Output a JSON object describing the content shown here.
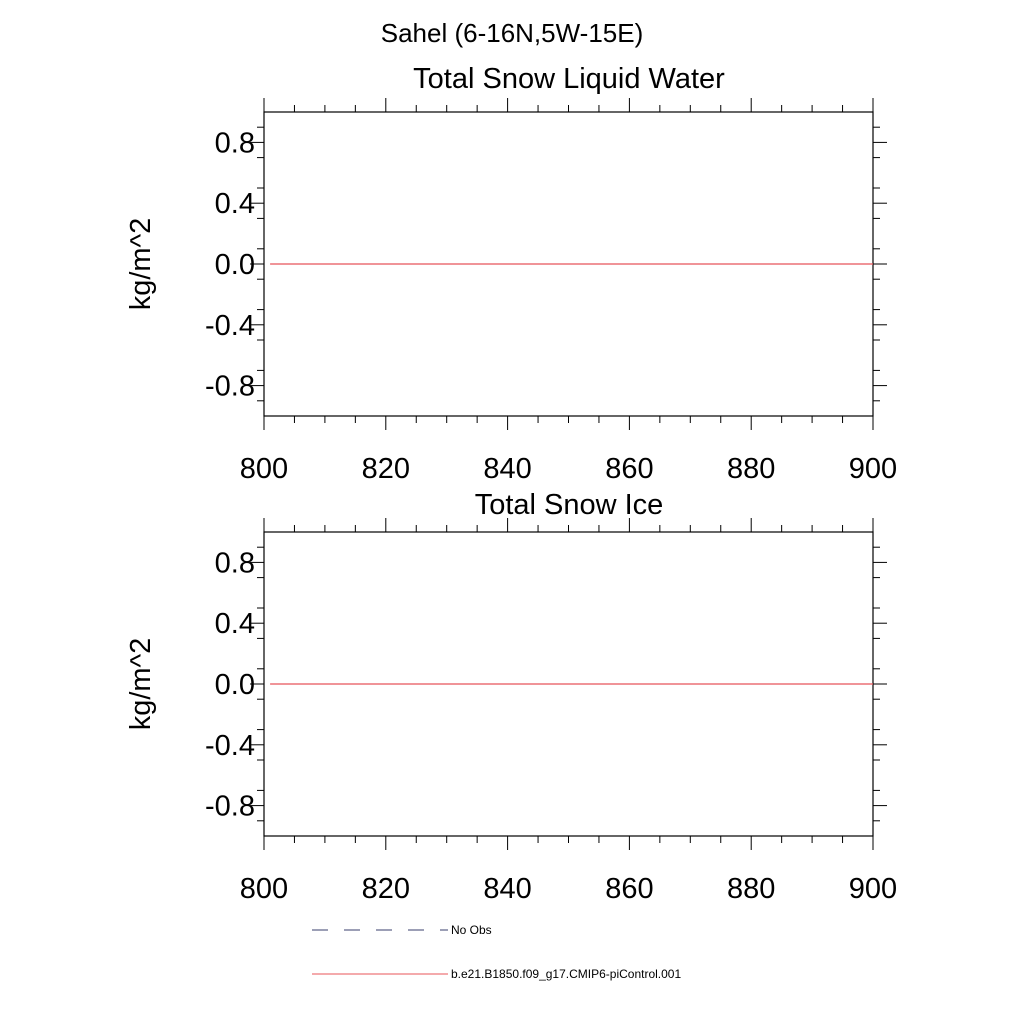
{
  "region_title": "Sahel (6-16N,5W-15E)",
  "chart_data": [
    {
      "type": "line",
      "title": "Total Snow Liquid Water",
      "xlabel": "",
      "ylabel": "kg/m^2",
      "xlim": [
        800,
        900
      ],
      "ylim": [
        -1.0,
        1.0
      ],
      "x_ticks": [
        800,
        820,
        840,
        860,
        880,
        900
      ],
      "x_tick_labels": [
        "800",
        "820",
        "840",
        "860",
        "880",
        "900"
      ],
      "y_ticks": [
        0.8,
        0.4,
        0.0,
        -0.4,
        -0.8
      ],
      "y_tick_labels": [
        "0.8",
        "0.4",
        "0.0",
        "-0.4",
        "-0.8"
      ],
      "grid": false,
      "series": [
        {
          "name": "b.e21.B1850.f09_g17.CMIP6-piControl.001",
          "color": "#e8555a",
          "x": [
            801,
            900
          ],
          "y": [
            0.0,
            0.0
          ]
        }
      ]
    },
    {
      "type": "line",
      "title": "Total Snow Ice",
      "xlabel": "",
      "ylabel": "kg/m^2",
      "xlim": [
        800,
        900
      ],
      "ylim": [
        -1.0,
        1.0
      ],
      "x_ticks": [
        800,
        820,
        840,
        860,
        880,
        900
      ],
      "x_tick_labels": [
        "800",
        "820",
        "840",
        "860",
        "880",
        "900"
      ],
      "y_ticks": [
        0.8,
        0.4,
        0.0,
        -0.4,
        -0.8
      ],
      "y_tick_labels": [
        "0.8",
        "0.4",
        "0.0",
        "-0.4",
        "-0.8"
      ],
      "grid": false,
      "series": [
        {
          "name": "b.e21.B1850.f09_g17.CMIP6-piControl.001",
          "color": "#e8555a",
          "x": [
            801,
            900
          ],
          "y": [
            0.0,
            0.0
          ]
        }
      ]
    }
  ],
  "legend": {
    "placement": "bottom",
    "items": [
      {
        "label": "No Obs",
        "color": "#3a3f6e",
        "style": "dashed"
      },
      {
        "label": "b.e21.B1850.f09_g17.CMIP6-piControl.001",
        "color": "#e8555a",
        "style": "solid"
      }
    ]
  }
}
